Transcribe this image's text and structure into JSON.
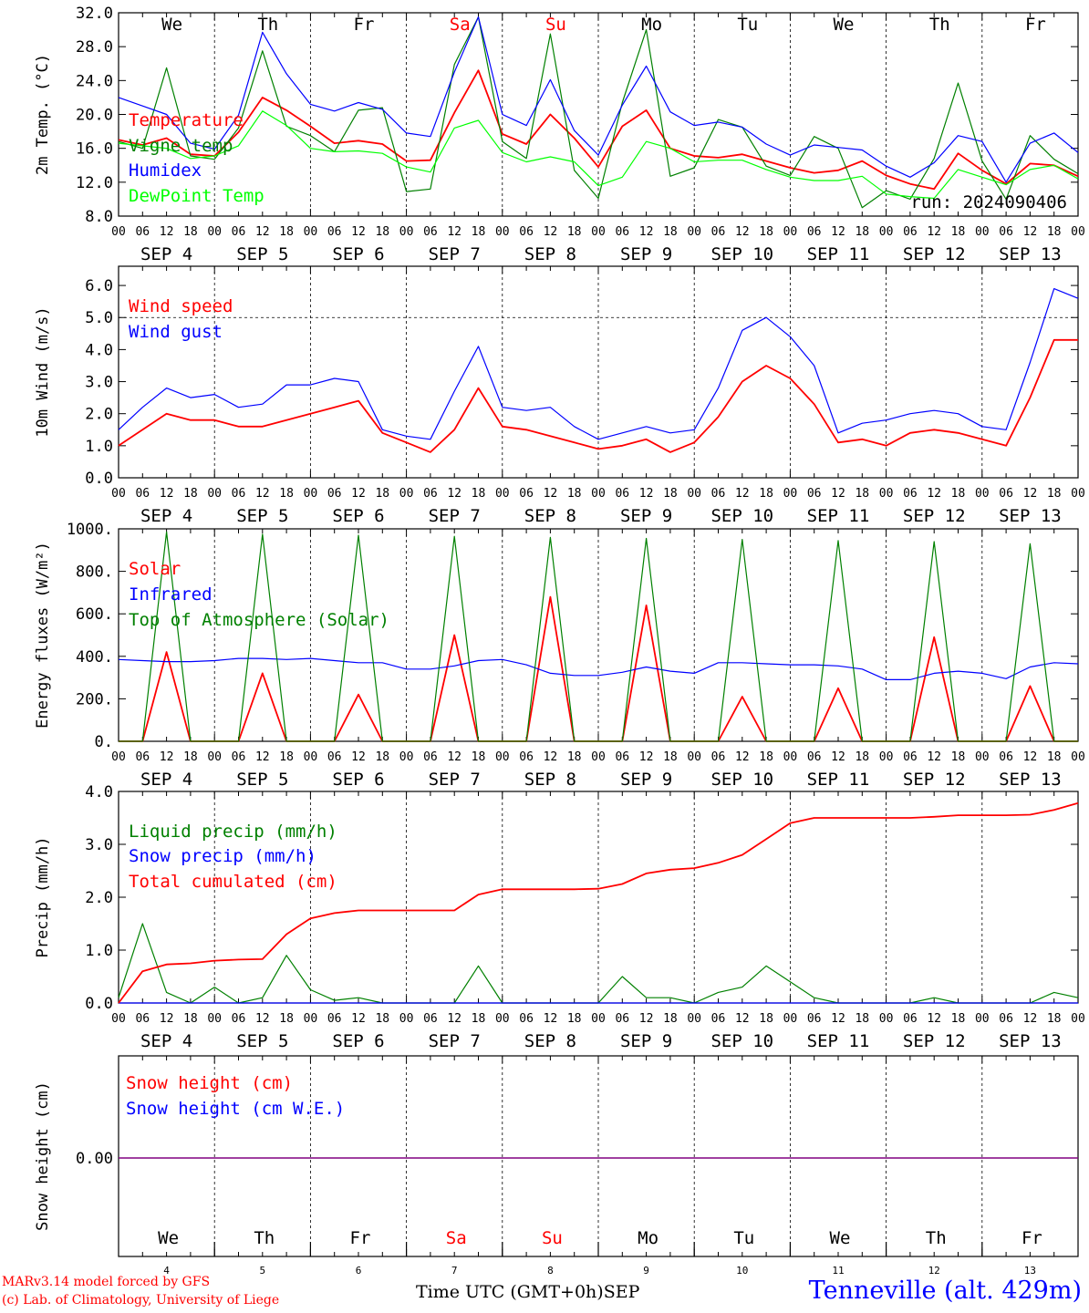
{
  "meta": {
    "run_label": "run: 2024090406",
    "credit_line1": "MARv3.14 model forced by GFS",
    "credit_line2": "(c) Lab. of Climatology, University of Liege",
    "xaxis_title": "Time UTC (GMT+0h)",
    "xaxis_month": "SEP",
    "station": "Tenneville (alt. 429m)"
  },
  "days": [
    {
      "abbr": "We",
      "date": "SEP  4",
      "num": "4",
      "weekend": false
    },
    {
      "abbr": "Th",
      "date": "SEP  5",
      "num": "5",
      "weekend": false
    },
    {
      "abbr": "Fr",
      "date": "SEP  6",
      "num": "6",
      "weekend": false
    },
    {
      "abbr": "Sa",
      "date": "SEP  7",
      "num": "7",
      "weekend": true
    },
    {
      "abbr": "Su",
      "date": "SEP  8",
      "num": "8",
      "weekend": true
    },
    {
      "abbr": "Mo",
      "date": "SEP  9",
      "num": "9",
      "weekend": false
    },
    {
      "abbr": "Tu",
      "date": "SEP 10",
      "num": "10",
      "weekend": false
    },
    {
      "abbr": "We",
      "date": "SEP 11",
      "num": "11",
      "weekend": false
    },
    {
      "abbr": "Th",
      "date": "SEP 12",
      "num": "12",
      "weekend": false
    },
    {
      "abbr": "Fr",
      "date": "SEP 13",
      "num": "13",
      "weekend": false
    }
  ],
  "hour_labels": [
    "00",
    "06",
    "12",
    "18"
  ],
  "colors": {
    "red": "#ff0000",
    "green": "#008000",
    "blue": "#0000ff",
    "lightgreen": "#00ff00",
    "purple": "#800080"
  },
  "chart_data": [
    {
      "type": "line",
      "id": "temp",
      "ylabel": "2m Temp. (°C)",
      "ylim": [
        8,
        32
      ],
      "yticks": [
        "8.0",
        "12.0",
        "16.0",
        "20.0",
        "24.0",
        "28.0",
        "32.0"
      ],
      "x_hours": [
        0,
        6,
        12,
        18,
        24,
        30,
        36,
        42,
        48,
        54,
        60,
        66,
        72,
        78,
        84,
        90,
        96,
        102,
        108,
        114,
        120,
        126,
        132,
        138,
        144,
        150,
        156,
        162,
        168,
        174,
        180,
        186,
        192,
        198,
        204,
        210,
        216,
        222,
        228,
        234,
        240
      ],
      "series": [
        {
          "name": "Temperature",
          "color": "red",
          "values": [
            17,
            16.4,
            17.2,
            15.3,
            15.1,
            17.9,
            22,
            20.5,
            18.6,
            16.6,
            16.9,
            16.5,
            14.5,
            14.6,
            20.2,
            25.2,
            17.7,
            16.5,
            20,
            17.2,
            13.8,
            18.6,
            20.5,
            16,
            15.1,
            14.9,
            15.3,
            14.5,
            13.7,
            13.1,
            13.4,
            14.5,
            12.8,
            11.8,
            11.2,
            15.4,
            13.4,
            11.8,
            14.2,
            14,
            12.7
          ]
        },
        {
          "name": "Vigne temp",
          "color": "green",
          "values": [
            16.8,
            16,
            25.5,
            15.1,
            14.7,
            18.4,
            27.5,
            18.6,
            17.5,
            15.6,
            20.5,
            20.8,
            10.9,
            11.2,
            25.9,
            31.5,
            16.8,
            14.8,
            29.5,
            13.4,
            10.1,
            21.4,
            30,
            12.7,
            13.7,
            19.4,
            18.5,
            13.9,
            12.8,
            17.4,
            16,
            9,
            11,
            10,
            14.8,
            23.7,
            14.5,
            10,
            17.5,
            14.7,
            13
          ]
        },
        {
          "name": "Humidex",
          "color": "blue",
          "values": [
            22,
            21,
            20,
            16.6,
            15.9,
            19.9,
            29.7,
            24.8,
            21.2,
            20.4,
            21.4,
            20.6,
            17.8,
            17.4,
            25,
            31.5,
            20,
            18.7,
            24.1,
            18.1,
            15.2,
            21.1,
            25.7,
            20.3,
            18.7,
            19.1,
            18.5,
            16.5,
            15.2,
            16.4,
            16.1,
            15.8,
            13.9,
            12.6,
            14.3,
            17.5,
            16.8,
            12,
            16.6,
            17.8,
            15.5
          ]
        },
        {
          "name": "DewPoint Temp",
          "color": "lightgreen",
          "values": [
            16.6,
            16.3,
            16,
            14.8,
            15.1,
            16.3,
            20.4,
            18.7,
            16,
            15.6,
            15.7,
            15.4,
            13.8,
            13.2,
            18.4,
            19.3,
            15.5,
            14.4,
            15,
            14.4,
            11.6,
            12.6,
            16.8,
            16,
            14.4,
            14.6,
            14.6,
            13.5,
            12.6,
            12.2,
            12.2,
            12.7,
            10.6,
            10.3,
            10.1,
            13.5,
            12.6,
            11.7,
            13.5,
            14,
            12.4
          ]
        }
      ]
    },
    {
      "type": "line",
      "id": "wind",
      "ylabel": "10m Wind (m/s)",
      "ylim": [
        0,
        6.6
      ],
      "yticks": [
        "0.0",
        "1.0",
        "2.0",
        "3.0",
        "4.0",
        "5.0",
        "6.0"
      ],
      "x_hours": [
        0,
        6,
        12,
        18,
        24,
        30,
        36,
        42,
        48,
        54,
        60,
        66,
        72,
        78,
        84,
        90,
        96,
        102,
        108,
        114,
        120,
        126,
        132,
        138,
        144,
        150,
        156,
        162,
        168,
        174,
        180,
        186,
        192,
        198,
        204,
        210,
        216,
        222,
        228,
        234,
        240
      ],
      "series": [
        {
          "name": "Wind speed",
          "color": "red",
          "values": [
            1,
            1.5,
            2,
            1.8,
            1.8,
            1.6,
            1.6,
            1.8,
            2,
            2.2,
            2.4,
            1.4,
            1.1,
            0.8,
            1.5,
            2.8,
            1.6,
            1.5,
            1.3,
            1.1,
            0.9,
            1,
            1.2,
            0.8,
            1.1,
            1.9,
            3,
            3.5,
            3.1,
            2.3,
            1.1,
            1.2,
            1,
            1.4,
            1.5,
            1.4,
            1.2,
            1,
            2.5,
            4.3,
            4.3
          ]
        },
        {
          "name": "Wind gust",
          "color": "blue",
          "values": [
            1.5,
            2.2,
            2.8,
            2.5,
            2.6,
            2.2,
            2.3,
            2.9,
            2.9,
            3.1,
            3,
            1.5,
            1.3,
            1.2,
            2.7,
            4.1,
            2.2,
            2.1,
            2.2,
            1.6,
            1.2,
            1.4,
            1.6,
            1.4,
            1.5,
            2.8,
            4.6,
            5,
            4.4,
            3.5,
            1.4,
            1.7,
            1.8,
            2,
            2.1,
            2,
            1.6,
            1.5,
            3.6,
            5.9,
            5.6
          ]
        }
      ],
      "dashed_level": 5
    },
    {
      "type": "line",
      "id": "flux",
      "ylabel": "Energy fluxes (W/m²)",
      "ylim": [
        0,
        1000
      ],
      "yticks": [
        "0.",
        "200.",
        "400.",
        "600.",
        "800.",
        "1000."
      ],
      "x_hours": [
        0,
        6,
        12,
        18,
        24,
        30,
        36,
        42,
        48,
        54,
        60,
        66,
        72,
        78,
        84,
        90,
        96,
        102,
        108,
        114,
        120,
        126,
        132,
        138,
        144,
        150,
        156,
        162,
        168,
        174,
        180,
        186,
        192,
        198,
        204,
        210,
        216,
        222,
        228,
        234,
        240
      ],
      "series": [
        {
          "name": "Solar",
          "color": "red",
          "values": [
            0,
            0,
            420,
            0,
            0,
            0,
            320,
            0,
            0,
            0,
            220,
            0,
            0,
            0,
            500,
            0,
            0,
            0,
            680,
            0,
            0,
            0,
            640,
            0,
            0,
            0,
            210,
            0,
            0,
            0,
            250,
            0,
            0,
            0,
            490,
            0,
            0,
            0,
            260,
            0,
            0
          ]
        },
        {
          "name": "Infrared",
          "color": "blue",
          "values": [
            385,
            380,
            375,
            375,
            380,
            390,
            390,
            385,
            390,
            380,
            370,
            370,
            340,
            340,
            355,
            380,
            385,
            360,
            320,
            310,
            310,
            325,
            350,
            330,
            320,
            370,
            370,
            365,
            360,
            360,
            355,
            340,
            290,
            290,
            320,
            330,
            320,
            295,
            350,
            370,
            365
          ]
        },
        {
          "name": "Top of Atmosphere (Solar)",
          "color": "green",
          "values": [
            0,
            0,
            985,
            0,
            0,
            0,
            975,
            0,
            0,
            0,
            970,
            0,
            0,
            0,
            965,
            0,
            0,
            0,
            960,
            0,
            0,
            0,
            955,
            0,
            0,
            0,
            950,
            0,
            0,
            0,
            945,
            0,
            0,
            0,
            940,
            0,
            0,
            0,
            930,
            0,
            0
          ]
        }
      ]
    },
    {
      "type": "line",
      "id": "precip",
      "ylabel": "Precip (mm/h)",
      "ylim": [
        0,
        4
      ],
      "yticks": [
        "0.0",
        "1.0",
        "2.0",
        "3.0",
        "4.0"
      ],
      "x_hours": [
        0,
        6,
        12,
        18,
        24,
        30,
        36,
        42,
        48,
        54,
        60,
        66,
        72,
        78,
        84,
        90,
        96,
        102,
        108,
        114,
        120,
        126,
        132,
        138,
        144,
        150,
        156,
        162,
        168,
        174,
        180,
        186,
        192,
        198,
        204,
        210,
        216,
        222,
        228,
        234,
        240
      ],
      "series": [
        {
          "name": "Liquid precip (mm/h)",
          "color": "green",
          "values": [
            0.1,
            1.5,
            0.2,
            0,
            0.3,
            0,
            0.1,
            0.9,
            0.25,
            0.05,
            0.1,
            0,
            0,
            0,
            0,
            0.7,
            0,
            0,
            0,
            0,
            0,
            0.5,
            0.1,
            0.1,
            0,
            0.2,
            0.3,
            0.7,
            0.4,
            0.1,
            0,
            0,
            0,
            0,
            0.1,
            0,
            0,
            0,
            0,
            0.2,
            0.1
          ]
        },
        {
          "name": "Snow precip (mm/h)",
          "color": "blue",
          "values": [
            0,
            0,
            0,
            0,
            0,
            0,
            0,
            0,
            0,
            0,
            0,
            0,
            0,
            0,
            0,
            0,
            0,
            0,
            0,
            0,
            0,
            0,
            0,
            0,
            0,
            0,
            0,
            0,
            0,
            0,
            0,
            0,
            0,
            0,
            0,
            0,
            0,
            0,
            0,
            0,
            0
          ]
        },
        {
          "name": "Total cumulated (cm)",
          "color": "red",
          "values": [
            0,
            0.6,
            0.73,
            0.75,
            0.8,
            0.82,
            0.83,
            1.3,
            1.6,
            1.7,
            1.75,
            1.75,
            1.75,
            1.75,
            1.75,
            2.05,
            2.15,
            2.15,
            2.15,
            2.15,
            2.16,
            2.25,
            2.45,
            2.52,
            2.55,
            2.65,
            2.8,
            3.1,
            3.4,
            3.5,
            3.5,
            3.5,
            3.5,
            3.5,
            3.52,
            3.55,
            3.55,
            3.55,
            3.56,
            3.65,
            3.78
          ]
        }
      ]
    },
    {
      "type": "line",
      "id": "snow",
      "ylabel": "Snow height (cm)",
      "ylim": [
        -1,
        1
      ],
      "yticks": [
        "0.00"
      ],
      "series": [
        {
          "name": "Snow height (cm)",
          "color": "red",
          "values": [
            0,
            0
          ]
        },
        {
          "name": "Snow height (cm W.E.)",
          "color": "blue",
          "values": [
            0,
            0
          ]
        }
      ]
    }
  ]
}
